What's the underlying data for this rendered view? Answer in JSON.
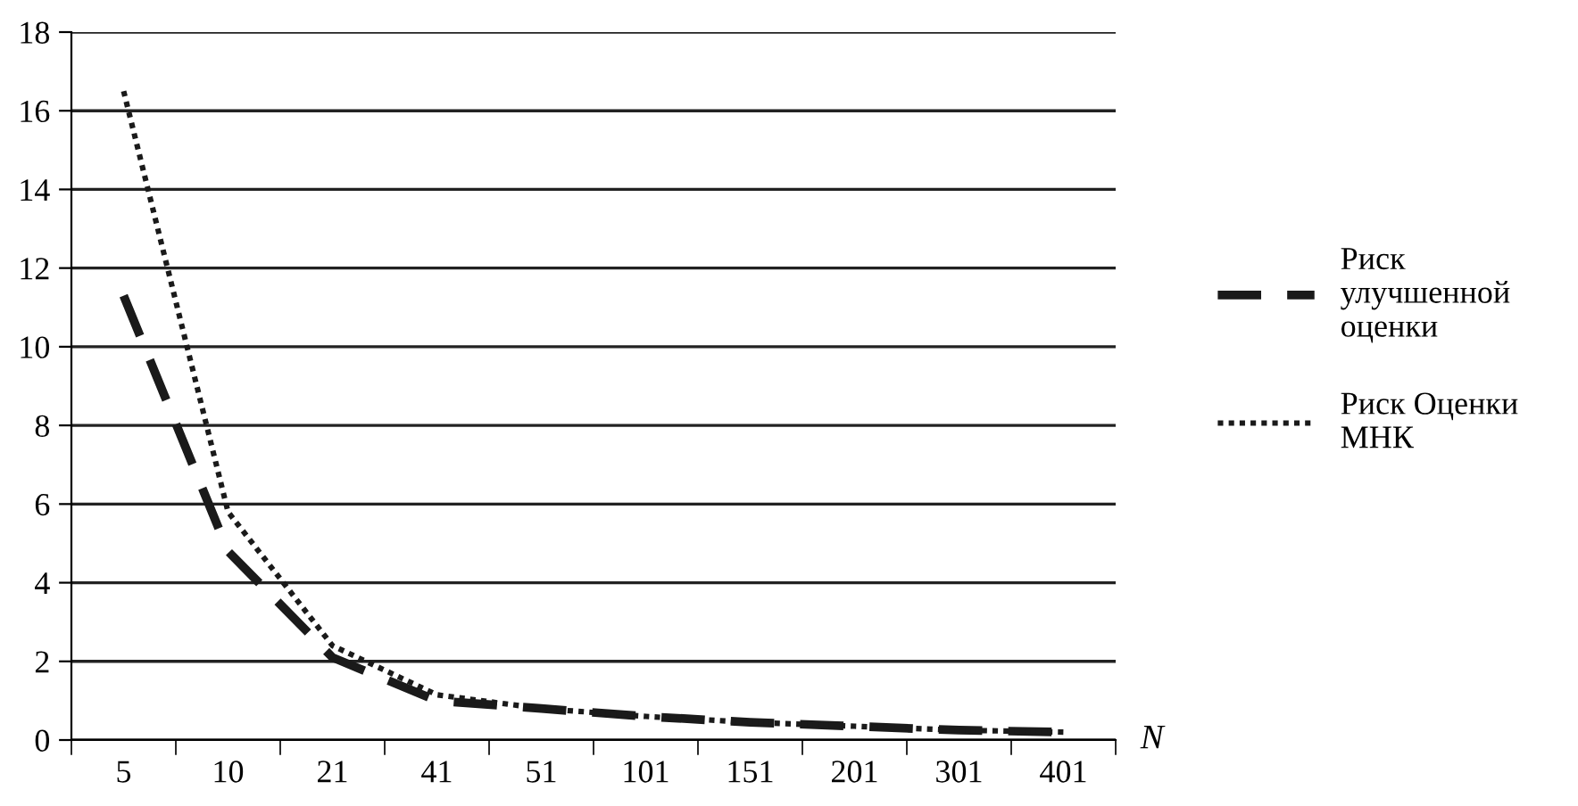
{
  "chart_data": {
    "type": "line",
    "xlabel": "N",
    "categories": [
      "5",
      "10",
      "21",
      "41",
      "51",
      "101",
      "151",
      "201",
      "301",
      "401"
    ],
    "series": [
      {
        "name": "Риск\nулучшенной\nоценки",
        "color": "#1a1a1a",
        "line_style": "dashed",
        "values": [
          11.3,
          4.8,
          2.1,
          1.0,
          0.8,
          0.6,
          0.45,
          0.35,
          0.25,
          0.2
        ]
      },
      {
        "name": "Риск Оценки\nМНК",
        "color": "#1a1a1a",
        "line_style": "dotted",
        "values": [
          16.5,
          5.8,
          2.4,
          1.15,
          0.8,
          0.6,
          0.45,
          0.35,
          0.25,
          0.2
        ]
      }
    ],
    "ylim": [
      0,
      18
    ],
    "yticks": [
      0,
      2,
      4,
      6,
      8,
      10,
      12,
      14,
      16,
      18
    ],
    "grid": "y",
    "legend": "right",
    "marker": "none"
  }
}
